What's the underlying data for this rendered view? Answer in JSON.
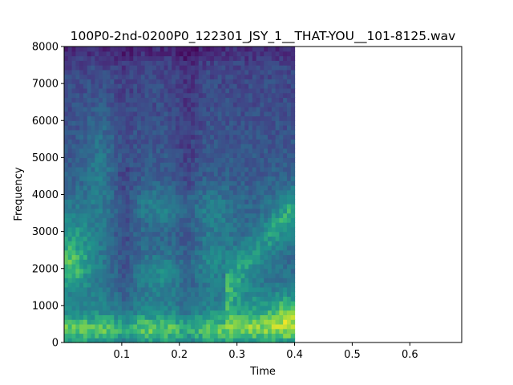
{
  "chart_data": {
    "type": "heatmap",
    "title": "100P0-2nd-0200P0_122301_JSY_1__THAT-YOU__101-8125.wav",
    "xlabel": "Time",
    "ylabel": "Frequency",
    "xlim": [
      0.0,
      0.69
    ],
    "ylim": [
      0,
      8000
    ],
    "xticks": [
      0.1,
      0.2,
      0.3,
      0.4,
      0.5,
      0.6,
      0.7
    ],
    "xtick_labels": [
      "0.1",
      "0.2",
      "0.3",
      "0.4",
      "0.5",
      "0.6"
    ],
    "yticks": [
      0,
      1000,
      2000,
      3000,
      4000,
      5000,
      6000,
      7000,
      8000
    ],
    "ytick_labels": [
      "0",
      "1000",
      "2000",
      "3000",
      "4000",
      "5000",
      "6000",
      "7000",
      "8000"
    ],
    "spectrogram_time_range": [
      0.0,
      0.4
    ],
    "colormap": "viridis",
    "grid": false
  }
}
